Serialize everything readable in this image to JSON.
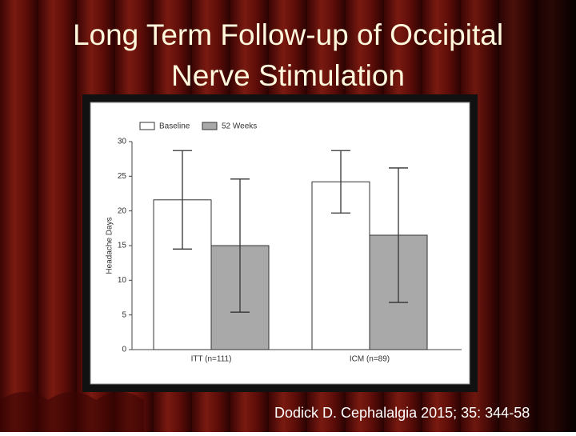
{
  "chart_data": {
    "type": "bar",
    "title": "Long Term Follow-up of Occipital Nerve Stimulation",
    "categories": [
      "ITT (n=111)",
      "ICM (n=89)"
    ],
    "y_label": "Headache Days",
    "series": [
      {
        "name": "Baseline",
        "color": "#ffffff",
        "values": [
          21.6,
          24.2
        ],
        "errors": [
          7.1,
          4.5
        ]
      },
      {
        "name": "52 Weeks",
        "color": "#a9a9a9",
        "values": [
          15.0,
          16.5
        ],
        "errors": [
          9.6,
          9.7
        ]
      }
    ],
    "ylim": [
      0,
      30
    ],
    "yticks": [
      0,
      5,
      10,
      15,
      20,
      25,
      30
    ],
    "legend": "top-left"
  },
  "citation": "Dodick D.  Cephalalgia 2015; 35: 344-58"
}
